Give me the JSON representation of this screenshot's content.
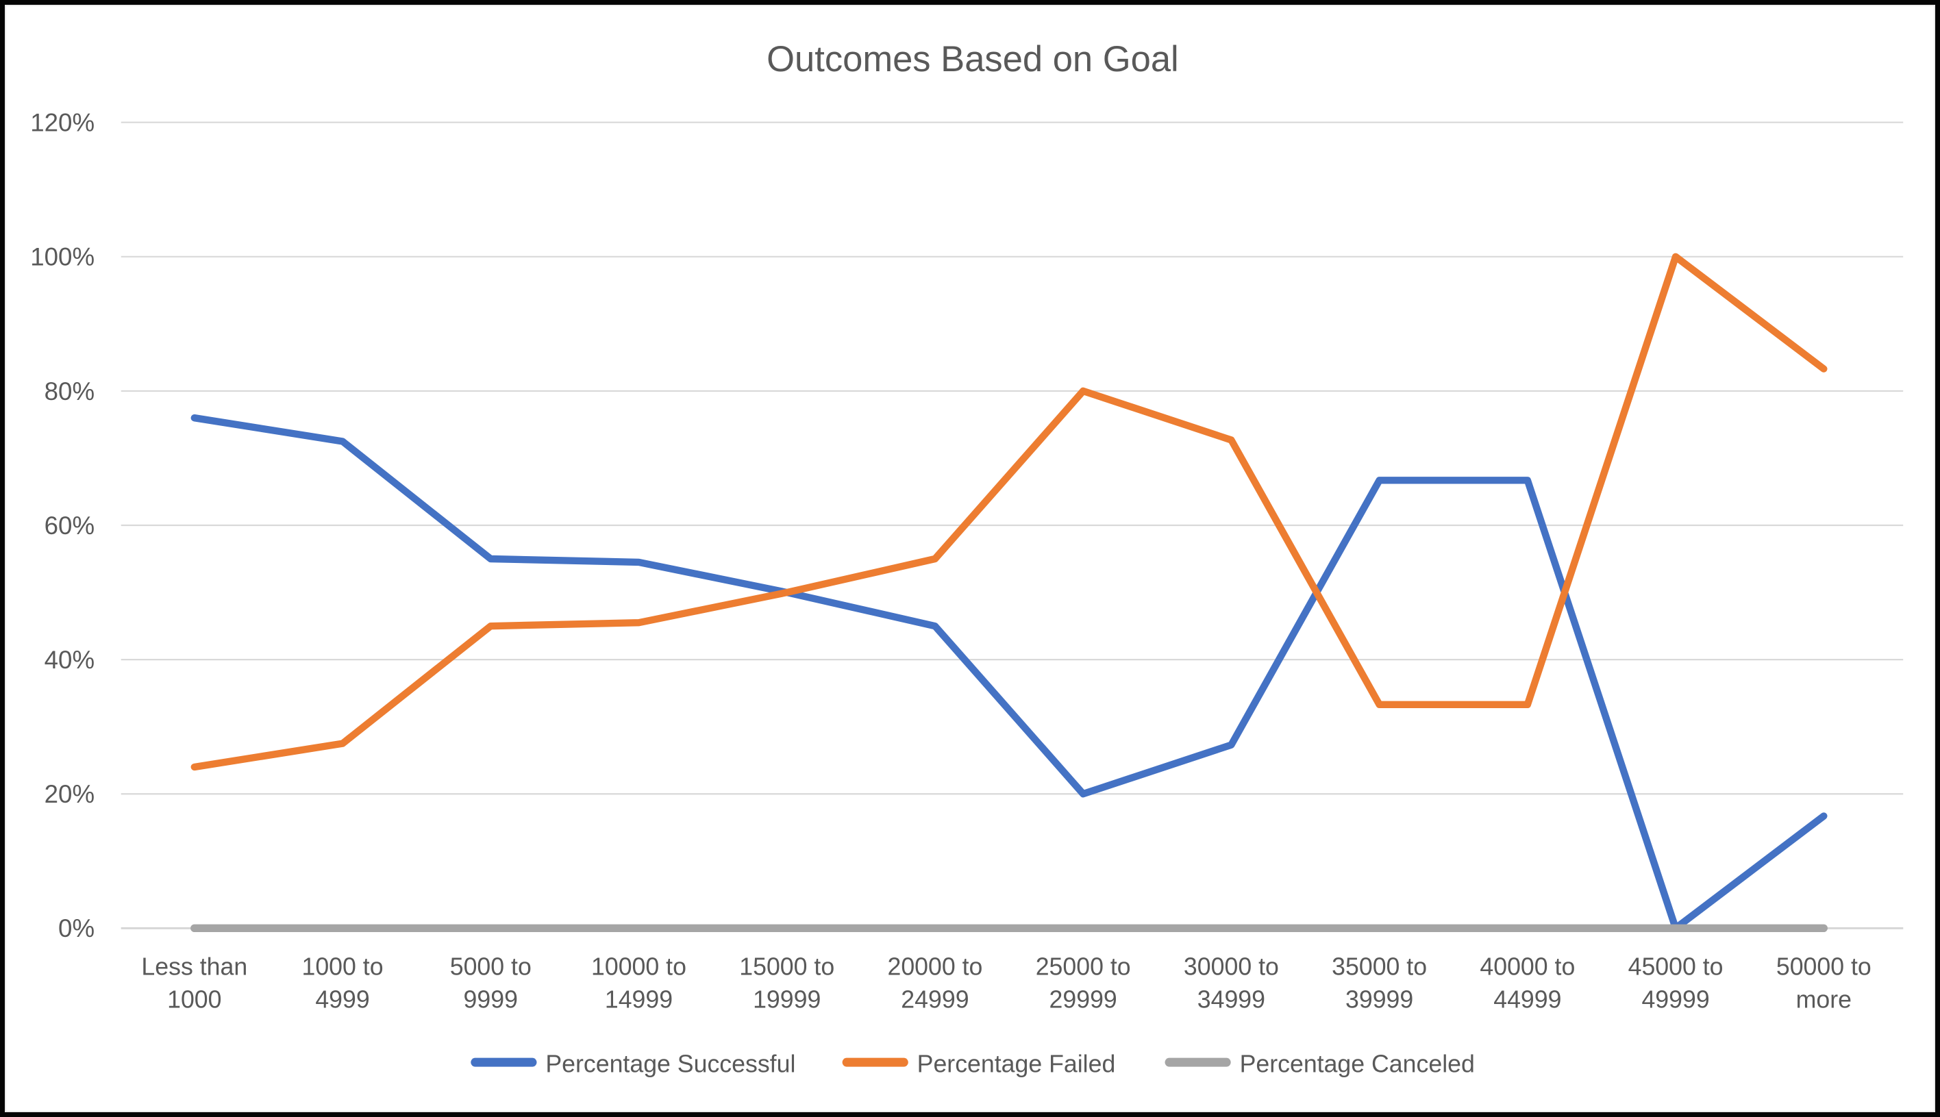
{
  "chart_data": {
    "type": "line",
    "title": "Outcomes Based on Goal",
    "xlabel": "",
    "ylabel": "",
    "ylim": [
      0,
      120
    ],
    "y_tick_step": 20,
    "y_ticks": [
      "0%",
      "20%",
      "40%",
      "60%",
      "80%",
      "100%",
      "120%"
    ],
    "grid": "horizontal",
    "legend_position": "bottom",
    "categories": [
      "Less than 1000",
      "1000 to 4999",
      "5000 to 9999",
      "10000 to 14999",
      "15000 to 19999",
      "20000 to 24999",
      "25000 to 29999",
      "30000 to 34999",
      "35000 to 39999",
      "40000 to 44999",
      "45000 to 49999",
      "50000 to more"
    ],
    "tick_label_lines": [
      [
        "Less than",
        "1000"
      ],
      [
        "1000 to",
        "4999"
      ],
      [
        "5000 to",
        "9999"
      ],
      [
        "10000 to",
        "14999"
      ],
      [
        "15000 to",
        "19999"
      ],
      [
        "20000 to",
        "24999"
      ],
      [
        "25000 to",
        "29999"
      ],
      [
        "30000 to",
        "34999"
      ],
      [
        "35000 to",
        "39999"
      ],
      [
        "40000 to",
        "44999"
      ],
      [
        "45000 to",
        "49999"
      ],
      [
        "50000 to",
        "more"
      ]
    ],
    "series": [
      {
        "name": "Percentage Successful",
        "color": "#4472C4",
        "values": [
          76,
          72.5,
          55,
          54.5,
          50,
          45,
          20,
          27.3,
          66.7,
          66.7,
          0,
          16.7
        ]
      },
      {
        "name": "Percentage Failed",
        "color": "#ED7D31",
        "values": [
          24,
          27.5,
          45,
          45.5,
          50,
          55,
          80,
          72.7,
          33.3,
          33.3,
          100,
          83.3
        ]
      },
      {
        "name": "Percentage Canceled",
        "color": "#A5A5A5",
        "values": [
          0,
          0,
          0,
          0,
          0,
          0,
          0,
          0,
          0,
          0,
          0,
          0
        ]
      }
    ]
  },
  "style_colors": {
    "gridline": "#D9D9D9",
    "axis_line": "#D6D6D6",
    "text": "#595959",
    "frame_border": "#050505",
    "background": "#FFFFFF"
  }
}
